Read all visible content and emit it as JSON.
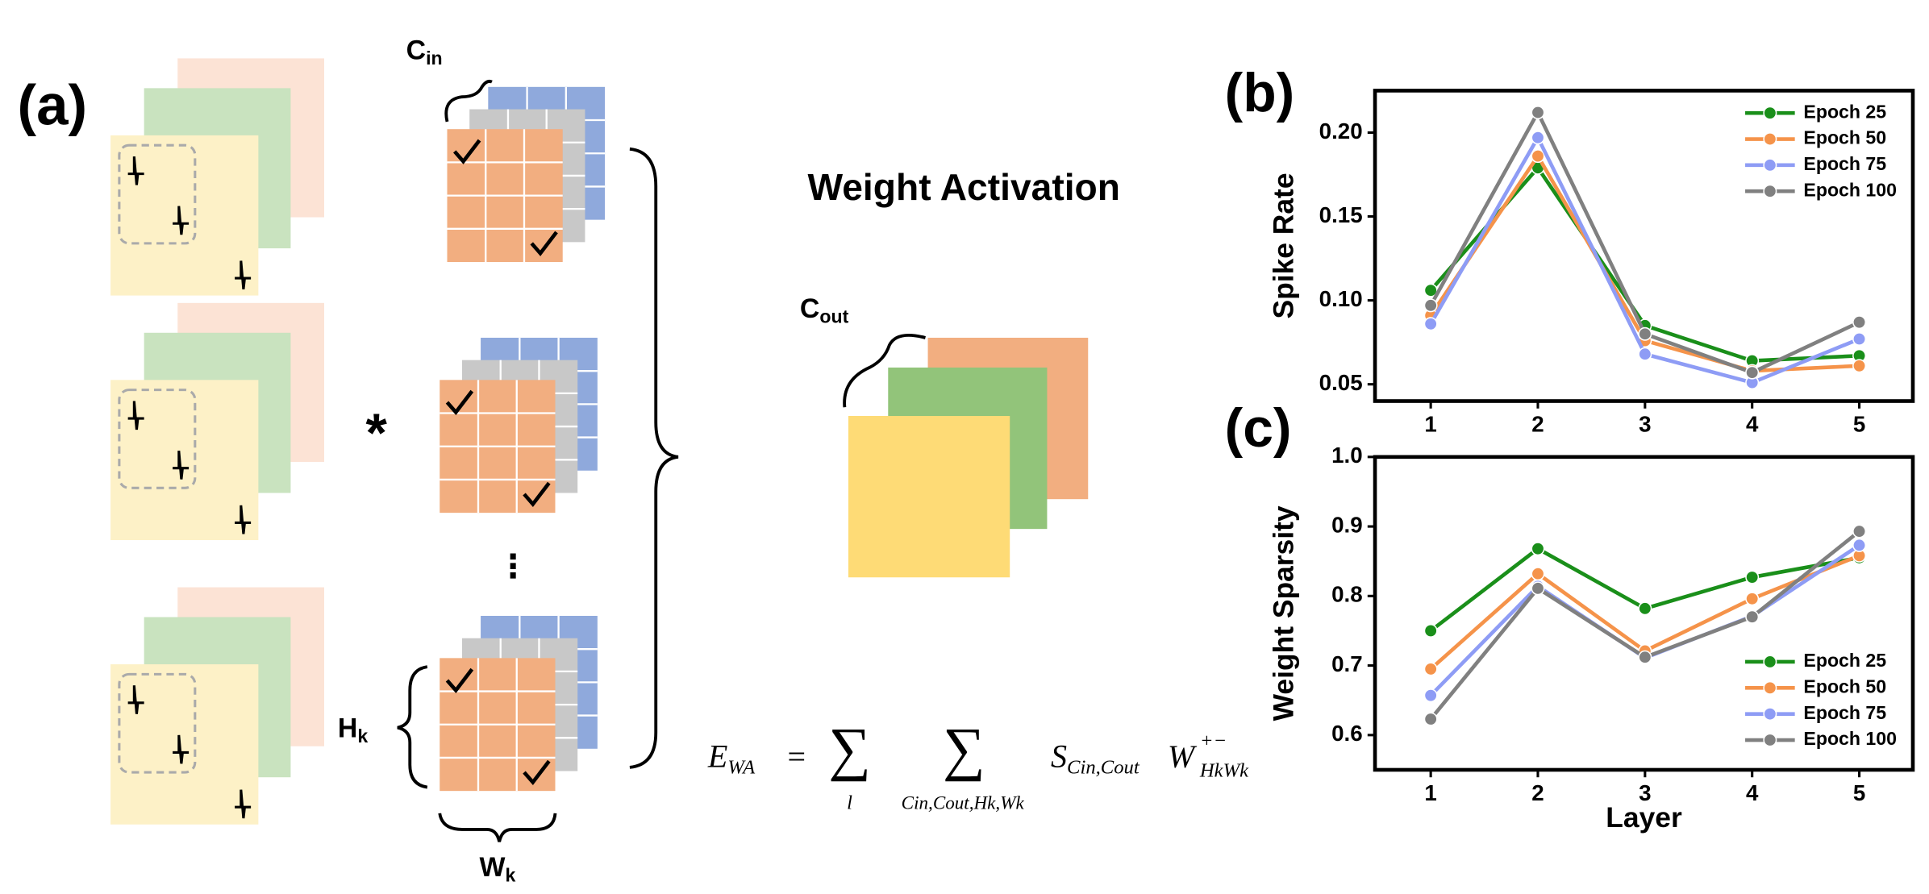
{
  "panel_labels": {
    "a": "(a)",
    "b": "(b)",
    "c": "(c)"
  },
  "diagram": {
    "c_in": {
      "base": "C",
      "sub": "in"
    },
    "c_out": {
      "base": "C",
      "sub": "out"
    },
    "h_k": {
      "base": "H",
      "sub": "k"
    },
    "w_k": {
      "base": "W",
      "sub": "k"
    },
    "operator": "*",
    "ellipsis": "⋮",
    "title": "Weight Activation",
    "formula": {
      "lhs": "E",
      "lhs_sub": "WA",
      "eq": "=",
      "sum": "∑",
      "sum1_index": "l",
      "sum2_index": "Cin,Cout,Hk,Wk",
      "term1": "S",
      "term1_sub": "Cin,Cout",
      "term2": "W",
      "term2_sup": "+−",
      "term2_sub": "HkWk"
    }
  },
  "chart_data": [
    {
      "type": "line",
      "y_label": "Spike Rate",
      "x": [
        1,
        2,
        3,
        4,
        5
      ],
      "xlim": [
        0.48,
        5.5
      ],
      "xticks": [
        1,
        2,
        3,
        4,
        5
      ],
      "ylim": [
        0.04,
        0.225
      ],
      "yticks": [
        0.05,
        {
          "value": 0.1,
          "label": "0.10"
        },
        0.15,
        {
          "value": 0.2,
          "label": "0.20"
        }
      ],
      "legend": "upper right",
      "series": [
        {
          "name": "Epoch 25",
          "color": "#1a8f1a",
          "values": [
            0.106,
            0.179,
            0.085,
            0.064,
            0.067
          ]
        },
        {
          "name": "Epoch 50",
          "color": "#f5934a",
          "values": [
            0.091,
            0.186,
            0.076,
            0.058,
            0.061
          ]
        },
        {
          "name": "Epoch 75",
          "color": "#8e9cf5",
          "values": [
            0.086,
            0.197,
            0.068,
            0.051,
            0.077
          ]
        },
        {
          "name": "Epoch 100",
          "color": "#808080",
          "values": [
            0.097,
            0.212,
            0.08,
            0.057,
            0.087
          ]
        }
      ]
    },
    {
      "type": "line",
      "x_label": "Layer",
      "y_label": "Weight Sparsity",
      "x": [
        1,
        2,
        3,
        4,
        5
      ],
      "xlim": [
        0.48,
        5.5
      ],
      "xticks": [
        1,
        2,
        3,
        4,
        5
      ],
      "ylim": [
        0.55,
        1.0
      ],
      "yticks": [
        0.6,
        0.7,
        0.8,
        0.9,
        {
          "value": 1.0,
          "label": "1.0"
        }
      ],
      "legend": "lower right",
      "series": [
        {
          "name": "Epoch 25",
          "color": "#1a8f1a",
          "values": [
            0.75,
            0.868,
            0.782,
            0.827,
            0.855
          ]
        },
        {
          "name": "Epoch 50",
          "color": "#f5934a",
          "values": [
            0.695,
            0.832,
            0.721,
            0.796,
            0.858
          ]
        },
        {
          "name": "Epoch 75",
          "color": "#8e9cf5",
          "values": [
            0.657,
            0.814,
            0.711,
            0.771,
            0.873
          ]
        },
        {
          "name": "Epoch 100",
          "color": "#808080",
          "values": [
            0.623,
            0.811,
            0.712,
            0.77,
            0.893
          ]
        }
      ]
    }
  ]
}
